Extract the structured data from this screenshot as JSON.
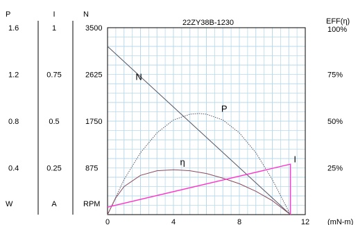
{
  "chart_data": {
    "type": "line",
    "title": "22ZY38B-1230",
    "colors": {
      "background": "#ffffff",
      "grid": "#b9d9ea",
      "axis": "#000000",
      "N": "#555566",
      "P": "#555566",
      "eta": "#8a4a5a",
      "I": "#ff33cc"
    },
    "x_axis": {
      "unit": "(mN-m)",
      "ticks": [
        0,
        4,
        8,
        12
      ],
      "range": [
        0,
        12
      ]
    },
    "left_axes": [
      {
        "symbol": "P",
        "unit": "W",
        "ticks": [
          {
            "value": 1.6,
            "label": "1.6"
          },
          {
            "value": 1.2,
            "label": "1.2"
          },
          {
            "value": 0.8,
            "label": "0.8"
          },
          {
            "value": 0.4,
            "label": "0.4"
          }
        ],
        "range": [
          0,
          1.6
        ]
      },
      {
        "symbol": "I",
        "unit": "A",
        "ticks": [
          {
            "value": 1,
            "label": "1"
          },
          {
            "value": 0.75,
            "label": "0.75"
          },
          {
            "value": 0.5,
            "label": "0.5"
          },
          {
            "value": 0.25,
            "label": "0.25"
          }
        ],
        "range": [
          0,
          1
        ]
      },
      {
        "symbol": "N",
        "unit": "RPM",
        "ticks": [
          {
            "value": 3500,
            "label": "3500"
          },
          {
            "value": 2625,
            "label": "2625"
          },
          {
            "value": 1750,
            "label": "1750"
          },
          {
            "value": 875,
            "label": "875"
          }
        ],
        "range": [
          0,
          3500
        ]
      }
    ],
    "right_axis": {
      "symbol": "EFF(η)",
      "unit": "%",
      "ticks": [
        {
          "value": 100,
          "label": "100%"
        },
        {
          "value": 75,
          "label": "75%"
        },
        {
          "value": 50,
          "label": "50%"
        },
        {
          "value": 25,
          "label": "25%"
        }
      ],
      "range": [
        0,
        100
      ]
    },
    "series": [
      {
        "key": "N",
        "name": "N",
        "axis": "N",
        "style": "solid",
        "x": [
          0,
          11.1
        ],
        "y": [
          3150,
          0
        ]
      },
      {
        "key": "P",
        "name": "P",
        "axis": "P",
        "style": "dotted",
        "x": [
          0,
          1,
          2,
          3,
          4,
          5,
          5.55,
          6,
          7,
          8,
          9,
          10,
          11.1
        ],
        "y": [
          0,
          0.3,
          0.53,
          0.7,
          0.81,
          0.86,
          0.865,
          0.86,
          0.81,
          0.7,
          0.53,
          0.3,
          0
        ]
      },
      {
        "key": "eta",
        "name": "η",
        "axis": "EFF",
        "style": "solid",
        "x": [
          0,
          0.5,
          1,
          2,
          3,
          4,
          5,
          6,
          7,
          8,
          9,
          10,
          11.1
        ],
        "y": [
          0,
          9,
          15,
          21,
          23.5,
          24,
          23.5,
          22,
          19.5,
          16.5,
          12.5,
          7.5,
          0
        ]
      },
      {
        "key": "I",
        "name": "I",
        "axis": "I",
        "style": "solid",
        "x": [
          0,
          11.1,
          11.1
        ],
        "y": [
          0.04,
          0.27,
          0
        ]
      }
    ],
    "curve_labels": [
      {
        "text": "N",
        "series": "N",
        "x": 1.7,
        "y": 2520
      },
      {
        "text": "P",
        "series": "P",
        "x": 6.9,
        "y": 0.88
      },
      {
        "text": "η",
        "series": "eta",
        "x": 4.4,
        "y": 26.5
      },
      {
        "text": "I",
        "series": "I",
        "x": 11.3,
        "y": 0.28
      }
    ]
  }
}
